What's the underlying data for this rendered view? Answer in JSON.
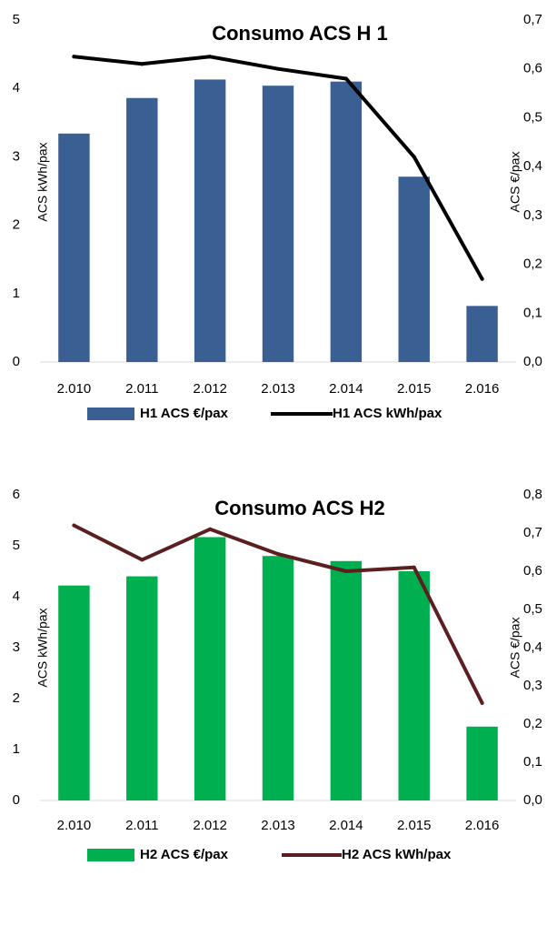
{
  "chart_data": [
    {
      "type": "bar",
      "title": "Consumo ACS H 1",
      "categories": [
        "2.010",
        "2.011",
        "2.012",
        "2.013",
        "2.014",
        "2.015",
        "2.016"
      ],
      "ylabel": "ACS kWh/pax",
      "y2label": "ACS €/pax",
      "ylim": [
        0,
        5
      ],
      "y2lim": [
        0,
        0.7
      ],
      "yticks": [
        "0",
        "1",
        "2",
        "3",
        "4",
        "5"
      ],
      "y2ticks": [
        "0,0",
        "0,1",
        "0,2",
        "0,3",
        "0,4",
        "0,5",
        "0,6",
        "0,7"
      ],
      "grid": false,
      "legend_position": "bottom",
      "series": [
        {
          "name": "H1 ACS €/pax",
          "kind": "bar",
          "axis": "left",
          "color": "#3A5F92",
          "values": [
            3.34,
            3.86,
            4.13,
            4.04,
            4.1,
            2.71,
            0.82
          ]
        },
        {
          "name": "H1 ACS kWh/pax",
          "kind": "line",
          "axis": "right",
          "color": "#000000",
          "values": [
            0.625,
            0.61,
            0.625,
            0.6,
            0.58,
            0.42,
            0.17
          ]
        }
      ]
    },
    {
      "type": "bar",
      "title": "Consumo ACS H2",
      "categories": [
        "2.010",
        "2.011",
        "2.012",
        "2.013",
        "2.014",
        "2.015",
        "2.016"
      ],
      "ylabel": "ACS kWh/pax",
      "y2label": "ACS €/pax",
      "ylim": [
        0,
        6
      ],
      "y2lim": [
        0,
        0.8
      ],
      "yticks": [
        "0",
        "1",
        "2",
        "3",
        "4",
        "5",
        "6"
      ],
      "y2ticks": [
        "0,0",
        "0,1",
        "0,2",
        "0,3",
        "0,4",
        "0,5",
        "0,6",
        "0,7",
        "0,8"
      ],
      "grid": false,
      "legend_position": "bottom",
      "series": [
        {
          "name": "H2 ACS €/pax",
          "kind": "bar",
          "axis": "left",
          "color": "#00B050",
          "values": [
            4.22,
            4.4,
            5.17,
            4.8,
            4.7,
            4.5,
            1.45
          ]
        },
        {
          "name": "H2 ACS kWh/pax",
          "kind": "line",
          "axis": "right",
          "color": "#5B1F1F",
          "values": [
            0.72,
            0.63,
            0.71,
            0.645,
            0.6,
            0.61,
            0.255
          ]
        }
      ]
    }
  ]
}
